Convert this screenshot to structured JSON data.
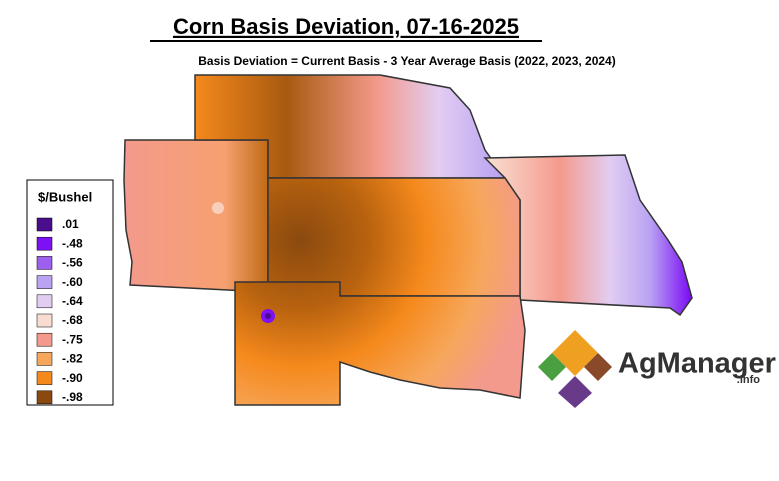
{
  "title": "Corn Basis Deviation, 07-16-2025",
  "subtitle": "Basis Deviation = Current Basis - 3 Year Average Basis (2022, 2023, 2024)",
  "legend": {
    "title": "$/Bushel",
    "items": [
      {
        "label": ".01",
        "color": "#4a0e8c"
      },
      {
        "label": "-.48",
        "color": "#7d10f5"
      },
      {
        "label": "-.56",
        "color": "#9d5fee"
      },
      {
        "label": "-.60",
        "color": "#b9a3f2"
      },
      {
        "label": "-.64",
        "color": "#e2cdf2"
      },
      {
        "label": "-.68",
        "color": "#f8dccf"
      },
      {
        "label": "-.75",
        "color": "#f49a8c"
      },
      {
        "label": "-.82",
        "color": "#f6a75c"
      },
      {
        "label": "-.90",
        "color": "#f5891c"
      },
      {
        "label": "-.98",
        "color": "#8a4a0f"
      }
    ]
  },
  "logo": {
    "name": "AgManager",
    "suffix": ".info"
  }
}
